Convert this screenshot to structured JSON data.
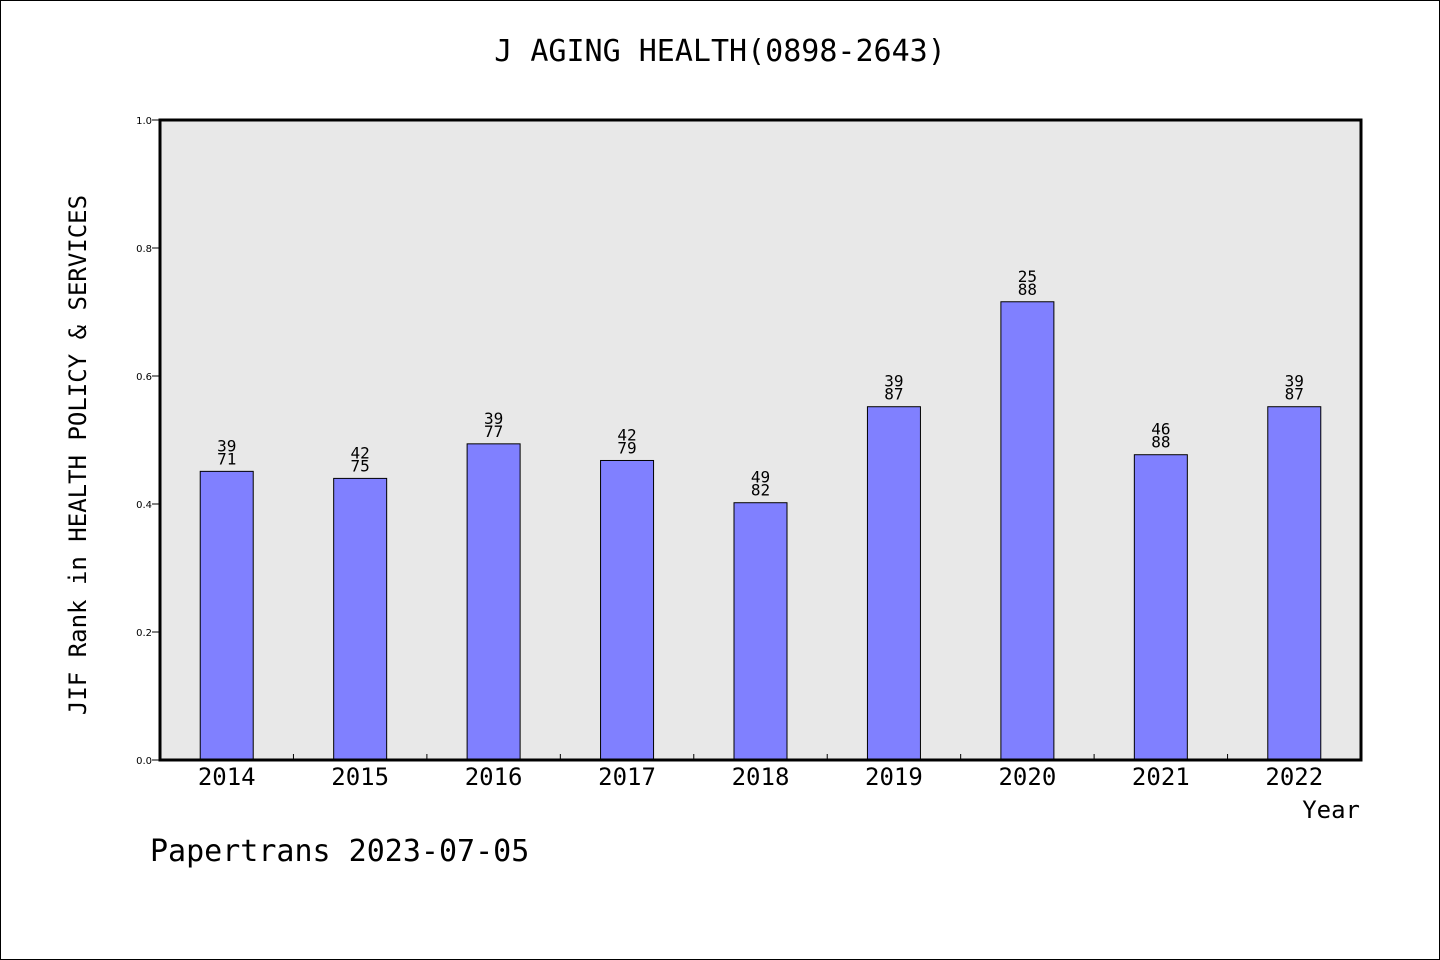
{
  "title": "J AGING HEALTH(0898-2643)",
  "footer": "Papertrans 2023-07-05",
  "colors": {
    "bar": "#8080ff",
    "plot_background": "#e8e8e8",
    "axis": "#000000"
  },
  "chart_data": {
    "type": "bar",
    "title": "J AGING HEALTH(0898-2643)",
    "xlabel": "Year",
    "ylabel": "JIF Rank in HEALTH POLICY & SERVICES",
    "ylim": [
      0,
      1.0
    ],
    "yticks": [
      "0.0",
      "0.2",
      "0.4",
      "0.6",
      "0.8",
      "1.0"
    ],
    "grid": false,
    "categories": [
      "2014",
      "2015",
      "2016",
      "2017",
      "2018",
      "2019",
      "2020",
      "2021",
      "2022"
    ],
    "values": [
      0.451,
      0.44,
      0.494,
      0.468,
      0.402,
      0.552,
      0.716,
      0.477,
      0.552
    ],
    "bar_labels": [
      [
        "39",
        "71"
      ],
      [
        "42",
        "75"
      ],
      [
        "39",
        "77"
      ],
      [
        "42",
        "79"
      ],
      [
        "49",
        "82"
      ],
      [
        "39",
        "87"
      ],
      [
        "25",
        "88"
      ],
      [
        "46",
        "88"
      ],
      [
        "39",
        "87"
      ]
    ]
  }
}
